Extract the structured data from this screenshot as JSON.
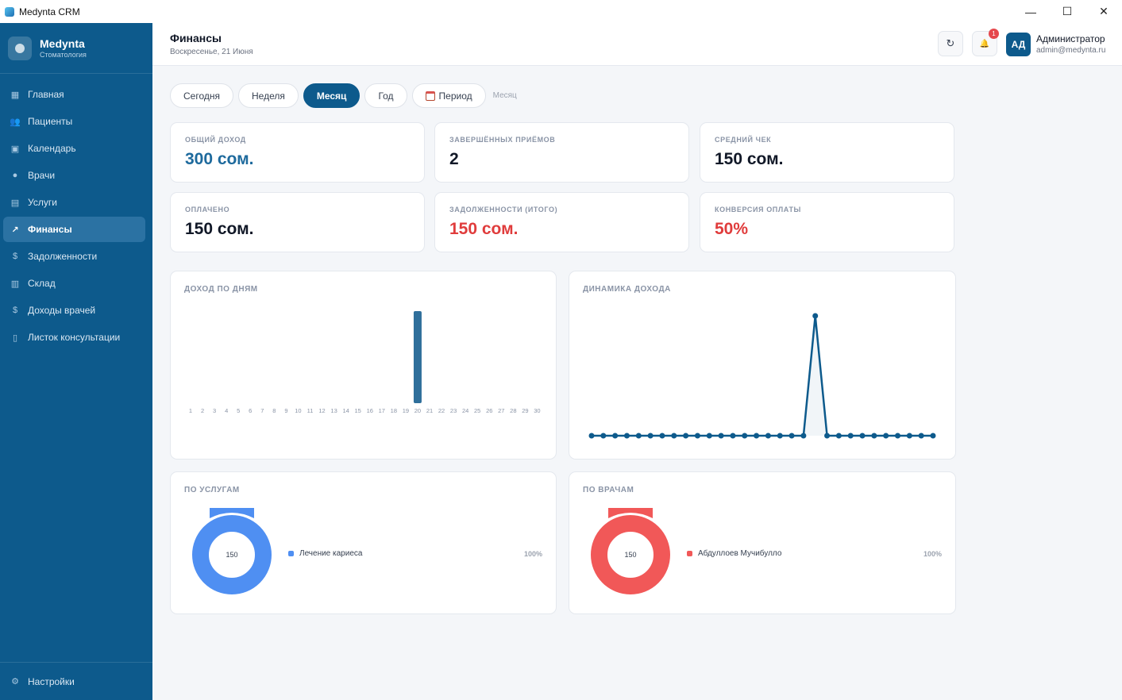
{
  "window": {
    "title": "Medynta CRM",
    "minimize": "—",
    "maximize": "☐",
    "close": "✕"
  },
  "sidebar": {
    "brand_name": "Medynta",
    "brand_sub": "Стоматология",
    "items": [
      {
        "label": "Главная",
        "icon": "▦"
      },
      {
        "label": "Пациенты",
        "icon": "👥"
      },
      {
        "label": "Календарь",
        "icon": "▣"
      },
      {
        "label": "Врачи",
        "icon": "●"
      },
      {
        "label": "Услуги",
        "icon": "▤"
      },
      {
        "label": "Финансы",
        "icon": "↗"
      },
      {
        "label": "Задолженности",
        "icon": "$"
      },
      {
        "label": "Склад",
        "icon": "▥"
      },
      {
        "label": "Доходы врачей",
        "icon": "$"
      },
      {
        "label": "Листок консультации",
        "icon": "▯"
      }
    ],
    "active_index": 5,
    "settings_label": "Настройки",
    "settings_icon": "⚙"
  },
  "header": {
    "title": "Финансы",
    "date": "Воскресенье, 21 Июня",
    "refresh_icon": "↻",
    "bell_icon": "🔔",
    "notification_count": "1",
    "avatar_initials": "АД",
    "user_name": "Администратор",
    "user_email": "admin@medynta.ru"
  },
  "filters": {
    "buttons": [
      "Сегодня",
      "Неделя",
      "Месяц",
      "Год"
    ],
    "active": "Месяц",
    "period_label": "Период",
    "current_label": "Месяц"
  },
  "stats": [
    {
      "label": "ОБЩИЙ ДОХОД",
      "value": "300 сом.",
      "tone": "blue"
    },
    {
      "label": "ЗАВЕРШЁННЫХ ПРИЁМОВ",
      "value": "2",
      "tone": "default"
    },
    {
      "label": "СРЕДНИЙ ЧЕК",
      "value": "150 сом.",
      "tone": "default"
    },
    {
      "label": "ОПЛАЧЕНО",
      "value": "150 сом.",
      "tone": "default"
    },
    {
      "label": "ЗАДОЛЖЕННОСТИ (ИТОГО)",
      "value": "150 сом.",
      "tone": "red"
    },
    {
      "label": "КОНВЕРСИЯ ОПЛАТЫ",
      "value": "50%",
      "tone": "red"
    }
  ],
  "chart_data": [
    {
      "type": "bar",
      "title": "ДОХОД ПО ДНЯМ",
      "categories": [
        "1",
        "2",
        "3",
        "4",
        "5",
        "6",
        "7",
        "8",
        "9",
        "10",
        "11",
        "12",
        "13",
        "14",
        "15",
        "16",
        "17",
        "18",
        "19",
        "20",
        "21",
        "22",
        "23",
        "24",
        "25",
        "26",
        "27",
        "28",
        "29",
        "30"
      ],
      "values": [
        0,
        0,
        0,
        0,
        0,
        0,
        0,
        0,
        0,
        0,
        0,
        0,
        0,
        0,
        0,
        0,
        0,
        0,
        0,
        300,
        0,
        0,
        0,
        0,
        0,
        0,
        0,
        0,
        0,
        0
      ],
      "color": "#2f6f9b",
      "grid": false
    },
    {
      "type": "line",
      "title": "ДИНАМИКА ДОХОДА",
      "x": [
        "1",
        "2",
        "3",
        "4",
        "5",
        "6",
        "7",
        "8",
        "9",
        "10",
        "11",
        "12",
        "13",
        "14",
        "15",
        "16",
        "17",
        "18",
        "19",
        "20",
        "21",
        "22",
        "23",
        "24",
        "25",
        "26",
        "27",
        "28",
        "29",
        "30"
      ],
      "values": [
        0,
        0,
        0,
        0,
        0,
        0,
        0,
        0,
        0,
        0,
        0,
        0,
        0,
        0,
        0,
        0,
        0,
        0,
        0,
        300,
        0,
        0,
        0,
        0,
        0,
        0,
        0,
        0,
        0,
        0
      ],
      "color": "#0d5a8c",
      "grid": false
    },
    {
      "type": "pie",
      "title": "ПО УСЛУГАМ",
      "center_label": "150",
      "slices": [
        {
          "name": "Лечение кариеса",
          "value": 100,
          "pct_label": "100%",
          "color": "#4f8ff2"
        }
      ]
    },
    {
      "type": "pie",
      "title": "ПО ВРАЧАМ",
      "center_label": "150",
      "slices": [
        {
          "name": "Абдуллоев Мучибулло",
          "value": 100,
          "pct_label": "100%",
          "color": "#f15858"
        }
      ]
    }
  ]
}
